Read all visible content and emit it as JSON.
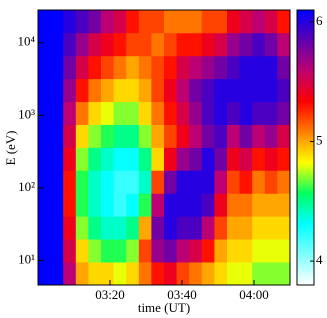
{
  "chart_data": {
    "type": "heatmap",
    "x_label": "time (UT)",
    "y_label": "E (eV)",
    "xbins": [
      180,
      183.5,
      187,
      190.5,
      194,
      197.5,
      201,
      204.5,
      208,
      211.5,
      215,
      218.5,
      222,
      225.5,
      229,
      232.5,
      236,
      239.5,
      243,
      246.5,
      250
    ],
    "ybins": [
      4.57,
      9.46,
      19.6,
      40.6,
      83.9,
      174,
      360,
      745,
      1540,
      3190,
      6610,
      13700,
      28300
    ],
    "xlim": [
      180,
      250
    ],
    "xticks": [
      {
        "value": 200,
        "label": "03:20"
      },
      {
        "value": 220,
        "label": "03:40"
      },
      {
        "value": 240,
        "label": "04:00"
      }
    ],
    "ylim": [
      4.57,
      28300
    ],
    "log_y": true,
    "yticks": [
      {
        "value": 10,
        "label": "10¹"
      },
      {
        "value": 100,
        "label": "10²"
      },
      {
        "value": 1000,
        "label": "10³"
      },
      {
        "value": 10000,
        "label": "10⁴"
      }
    ],
    "zlim": [
      3.8,
      6.1
    ],
    "zticks": [
      4,
      5,
      6
    ],
    "colormap": [
      "#ffffff",
      "#80ffff",
      "#00ffff",
      "#00ff60",
      "#ffff00",
      "#ff8000",
      "#ff0000",
      "#c00070",
      "#6000b0",
      "#0000ff"
    ],
    "z": [
      [
        6.1,
        6.1,
        6.1,
        6.1,
        6.1,
        6.1,
        6.1,
        6.1,
        6.1,
        6.1,
        6.1,
        6.1
      ],
      [
        6.1,
        6.1,
        6.1,
        6.1,
        6.1,
        6.1,
        6.1,
        6.1,
        6.1,
        6.1,
        6.1,
        6.1
      ],
      [
        5.6,
        5.5,
        5.4,
        5.3,
        5.3,
        5.4,
        5.5,
        5.6,
        5.7,
        5.8,
        5.9,
        6.0
      ],
      [
        5.0,
        4.9,
        4.7,
        4.6,
        4.6,
        4.7,
        4.9,
        5.1,
        5.3,
        5.5,
        5.7,
        5.9
      ],
      [
        4.9,
        4.7,
        4.5,
        4.4,
        4.4,
        4.5,
        4.7,
        4.9,
        5.1,
        5.3,
        5.5,
        5.8
      ],
      [
        4.9,
        4.6,
        4.4,
        4.3,
        4.3,
        4.4,
        4.6,
        4.8,
        5.0,
        5.2,
        5.4,
        5.6
      ],
      [
        4.8,
        4.6,
        4.4,
        4.2,
        4.2,
        4.3,
        4.5,
        4.7,
        4.9,
        5.1,
        5.3,
        5.5
      ],
      [
        4.9,
        4.7,
        4.5,
        4.3,
        4.2,
        4.3,
        4.5,
        4.7,
        4.9,
        5.0,
        5.2,
        5.3
      ],
      [
        5.1,
        5.2,
        5.0,
        4.6,
        4.4,
        4.5,
        4.7,
        4.9,
        5.0,
        5.1,
        5.2,
        5.2
      ],
      [
        5.3,
        5.7,
        5.8,
        5.6,
        5.2,
        4.9,
        5.0,
        5.1,
        5.2,
        5.2,
        5.1,
        5.2
      ],
      [
        5.4,
        5.8,
        6.0,
        6.0,
        5.8,
        5.4,
        5.2,
        5.3,
        5.4,
        5.3,
        5.2,
        5.1
      ],
      [
        5.2,
        5.6,
        5.9,
        6.0,
        6.0,
        5.7,
        5.4,
        5.5,
        5.6,
        5.5,
        5.3,
        5.1
      ],
      [
        5.1,
        5.5,
        5.9,
        6.0,
        6.0,
        5.8,
        5.6,
        5.7,
        5.8,
        5.6,
        5.3,
        5.1
      ],
      [
        5.0,
        5.3,
        5.6,
        5.9,
        6.0,
        6.0,
        5.8,
        5.9,
        5.9,
        5.7,
        5.4,
        5.2
      ],
      [
        4.9,
        5.0,
        5.2,
        5.4,
        5.6,
        5.8,
        5.9,
        6.0,
        6.0,
        5.8,
        5.5,
        5.2
      ],
      [
        4.8,
        4.9,
        5.0,
        5.1,
        5.2,
        5.4,
        5.6,
        5.9,
        6.0,
        5.9,
        5.7,
        5.4
      ],
      [
        4.8,
        4.9,
        5.0,
        5.1,
        5.3,
        5.5,
        5.8,
        6.0,
        6.0,
        6.0,
        5.8,
        5.5
      ],
      [
        4.7,
        4.8,
        4.9,
        5.0,
        5.1,
        5.3,
        5.6,
        5.9,
        6.0,
        6.0,
        5.9,
        5.6
      ],
      [
        4.7,
        4.8,
        4.9,
        5.0,
        5.2,
        5.4,
        5.7,
        5.9,
        6.0,
        6.0,
        5.8,
        5.5
      ],
      [
        4.7,
        4.8,
        4.9,
        5.0,
        5.1,
        5.3,
        5.5,
        5.8,
        5.9,
        5.8,
        5.6,
        5.3
      ]
    ]
  }
}
